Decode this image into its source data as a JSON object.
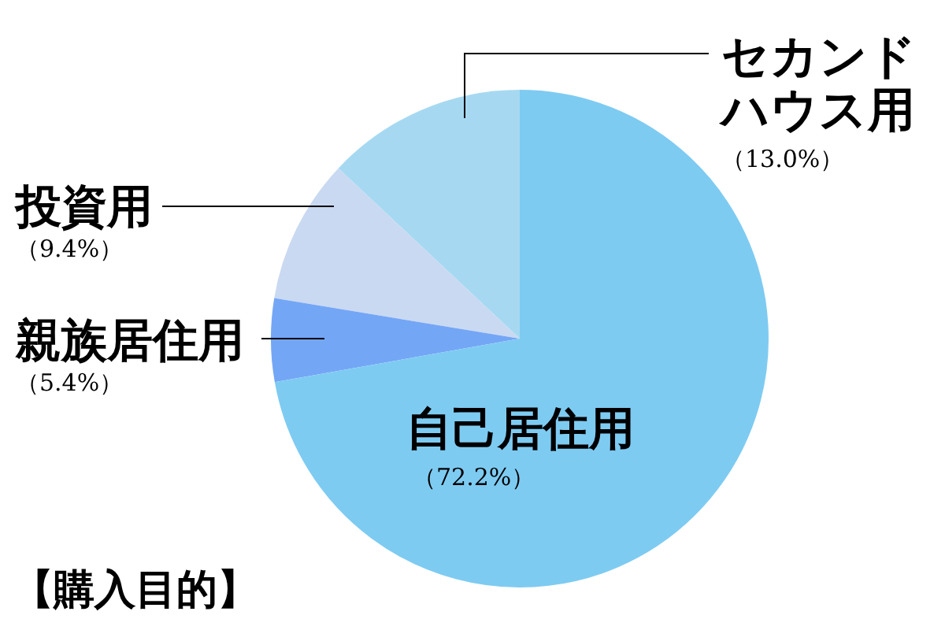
{
  "chart_data": {
    "type": "pie",
    "title": "【購入目的】",
    "categories": [
      "自己居住用",
      "親族居住用",
      "投資用",
      "セカンドハウス用"
    ],
    "values": [
      72.2,
      5.4,
      9.4,
      13.0
    ],
    "value_labels": [
      "（72.2%）",
      "（5.4%）",
      "（9.4%）",
      "（13.0%）"
    ],
    "colors": [
      "#7ecbf2",
      "#74a6f6",
      "#c9d9f1",
      "#a6d9f1"
    ]
  }
}
